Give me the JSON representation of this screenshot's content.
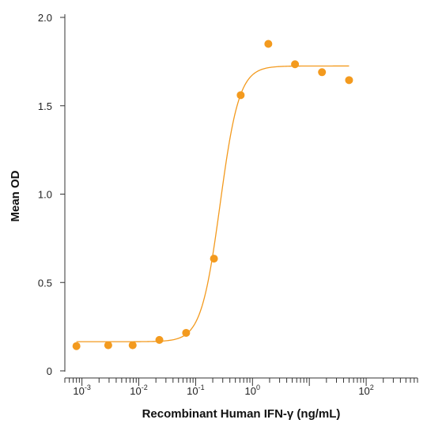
{
  "chart_data": {
    "type": "scatter",
    "title": "",
    "xlabel": "Recombinant Human IFN-γ (ng/mL)",
    "ylabel": "Mean OD",
    "x_scale": "log",
    "xlim": [
      0.0005,
      800
    ],
    "ylim": [
      0,
      2.0
    ],
    "grid": false,
    "legend": "none",
    "color": "#F39A1E",
    "y_ticks": [
      {
        "value": 0,
        "label": "0"
      },
      {
        "value": 0.5,
        "label": "0.5"
      },
      {
        "value": 1.0,
        "label": "1.0"
      },
      {
        "value": 1.5,
        "label": "1.5"
      },
      {
        "value": 2.0,
        "label": "2.0"
      }
    ],
    "x_ticks": [
      {
        "value": 0.001,
        "base": "10",
        "exp": "-3"
      },
      {
        "value": 0.01,
        "base": "10",
        "exp": "-2"
      },
      {
        "value": 0.1,
        "base": "10",
        "exp": "-1"
      },
      {
        "value": 1,
        "base": "10",
        "exp": "0"
      },
      {
        "value": 10,
        "base": "",
        "exp": ""
      },
      {
        "value": 100,
        "base": "10",
        "exp": "2"
      }
    ],
    "points": [
      {
        "x": 0.0008,
        "y": 0.14
      },
      {
        "x": 0.0029,
        "y": 0.145
      },
      {
        "x": 0.0078,
        "y": 0.145
      },
      {
        "x": 0.023,
        "y": 0.175
      },
      {
        "x": 0.068,
        "y": 0.215
      },
      {
        "x": 0.21,
        "y": 0.635
      },
      {
        "x": 0.62,
        "y": 1.56
      },
      {
        "x": 1.9,
        "y": 1.85
      },
      {
        "x": 5.6,
        "y": 1.735
      },
      {
        "x": 16.7,
        "y": 1.69
      },
      {
        "x": 50,
        "y": 1.645
      }
    ],
    "fit_curve": {
      "type": "four-parameter-logistic",
      "bottom": 0.165,
      "top": 1.725,
      "ec50": 0.27,
      "hill": 2.6
    }
  }
}
